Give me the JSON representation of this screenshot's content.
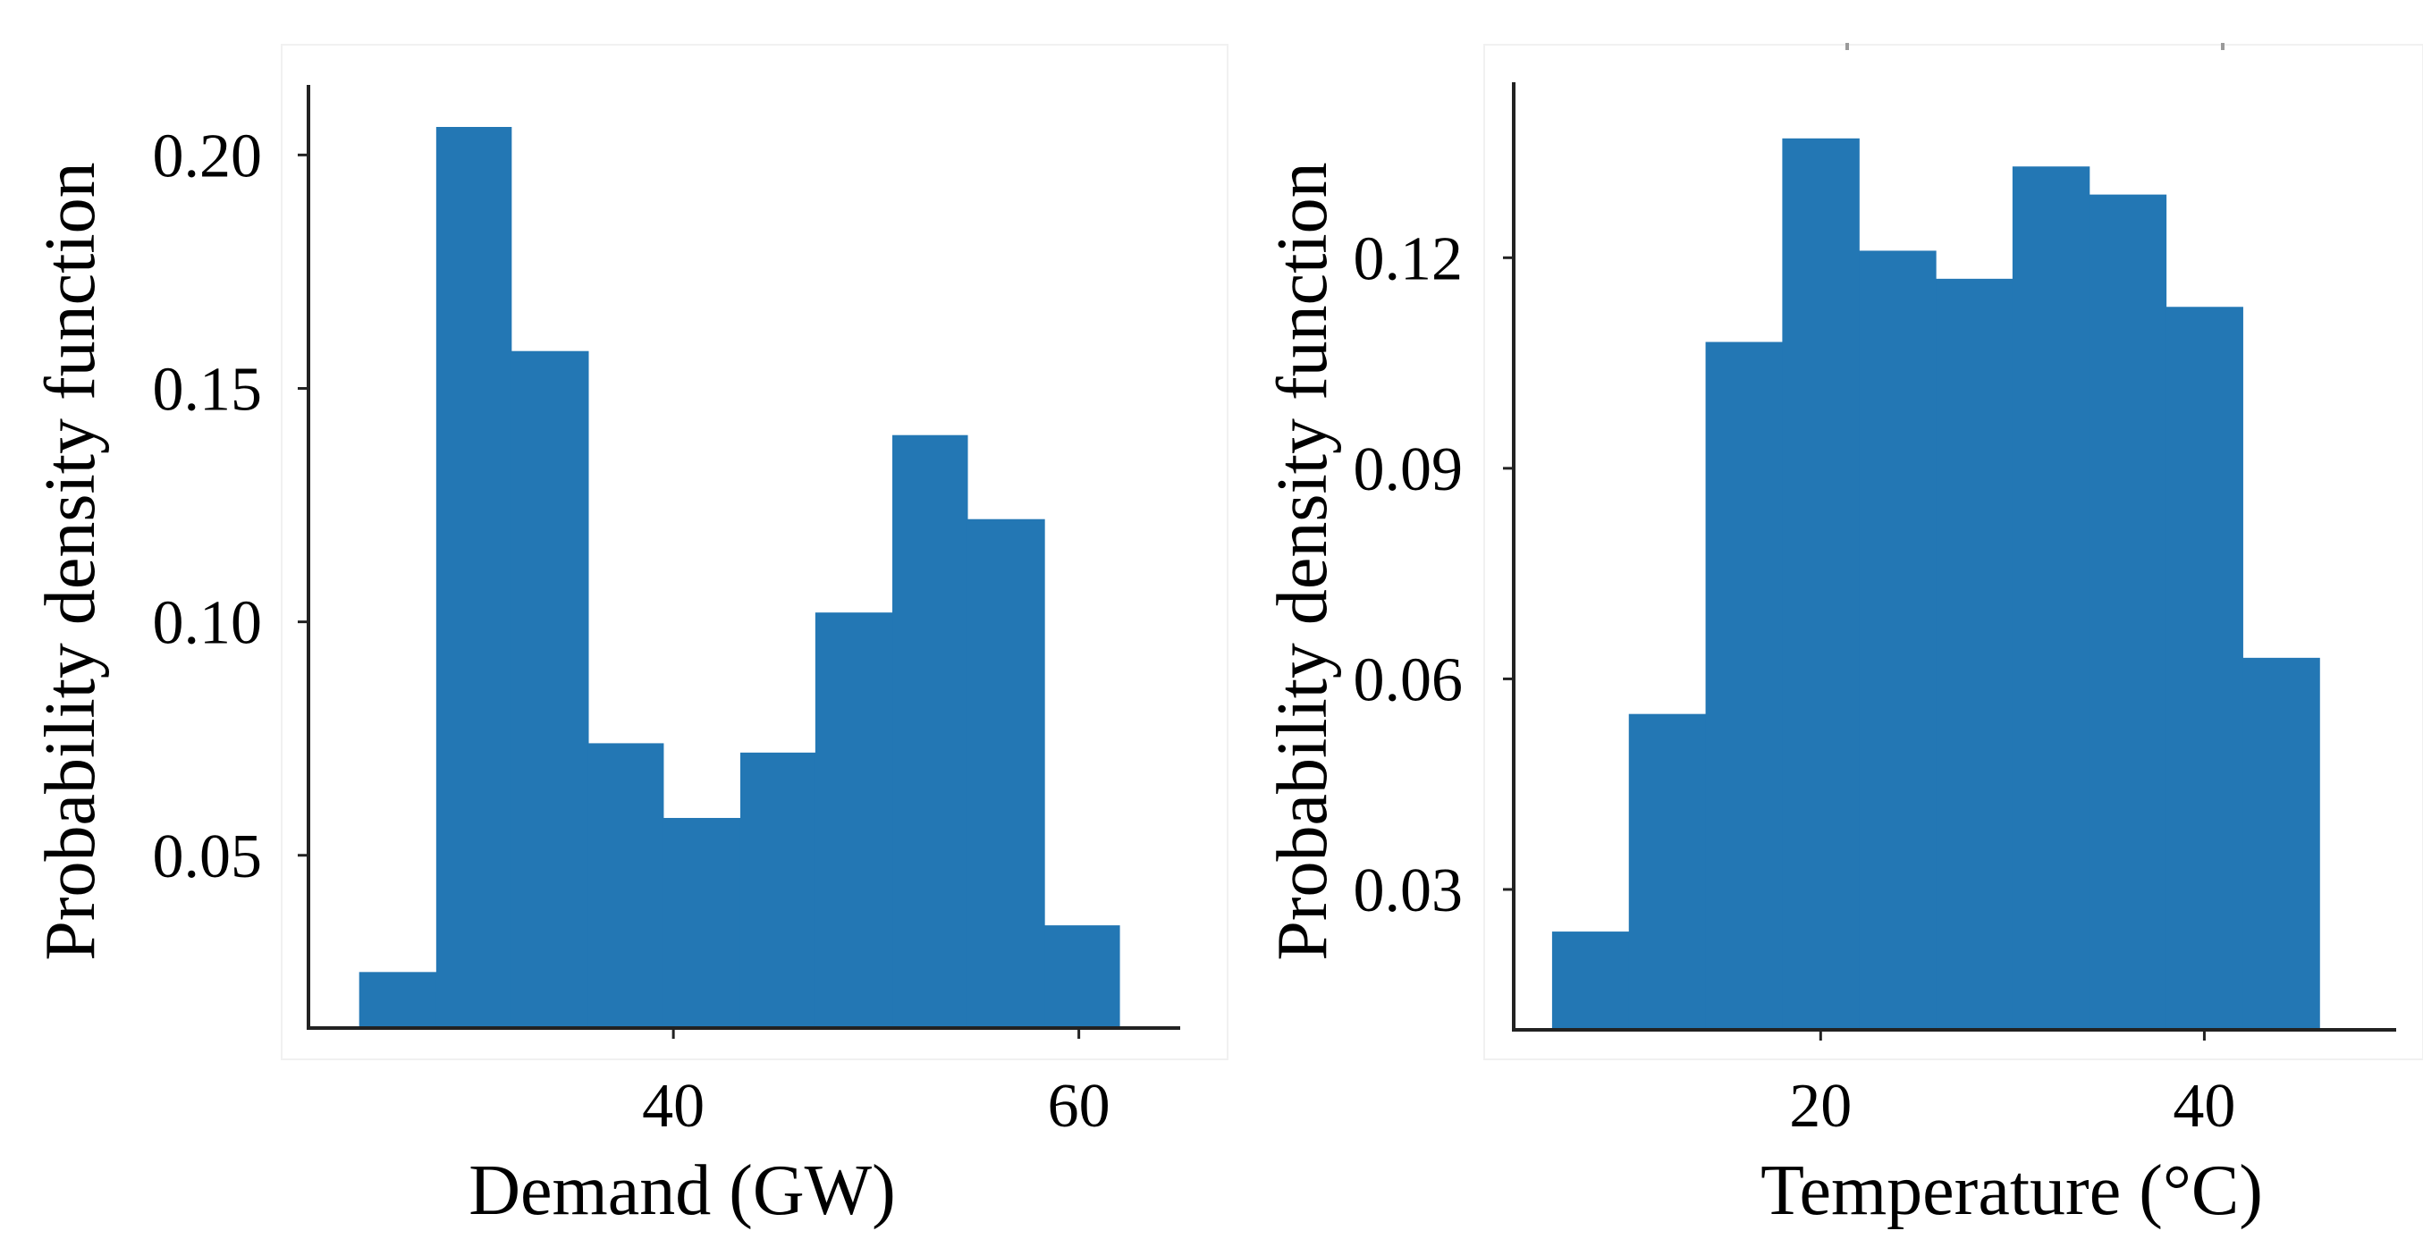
{
  "chart_data": [
    {
      "type": "bar",
      "subtype": "histogram",
      "xlabel": "Demand (GW)",
      "ylabel": "Probability density function",
      "xlim": [
        22,
        65
      ],
      "ylim": [
        0.013,
        0.215
      ],
      "xticks": [
        40,
        60
      ],
      "xtick_labels": [
        "40",
        "60"
      ],
      "yticks": [
        0.05,
        0.1,
        0.15,
        0.2
      ],
      "ytick_labels": [
        "0.05",
        "0.10",
        "0.15",
        "0.20"
      ],
      "bin_edges": [
        24.5,
        28.3,
        32.0,
        35.8,
        39.5,
        43.3,
        47.0,
        50.8,
        54.5,
        58.3,
        62.0
      ],
      "values": [
        0.025,
        0.206,
        0.158,
        0.074,
        0.058,
        0.072,
        0.102,
        0.14,
        0.122,
        0.035
      ],
      "color": "#2377b4",
      "grid": false
    },
    {
      "type": "bar",
      "subtype": "histogram",
      "xlabel": "Temperature (°C)",
      "ylabel": "Probability density function",
      "xlim": [
        4,
        50
      ],
      "ylim": [
        0.01,
        0.145
      ],
      "xticks": [
        20,
        40
      ],
      "xtick_labels": [
        "20",
        "40"
      ],
      "yticks": [
        0.03,
        0.06,
        0.09,
        0.12
      ],
      "ytick_labels": [
        "0.03",
        "0.06",
        "0.09",
        "0.12"
      ],
      "bin_edges": [
        6.0,
        10.0,
        14.0,
        18.0,
        22.0,
        26.0,
        30.0,
        34.0,
        38.0,
        42.0,
        46.0
      ],
      "values": [
        0.024,
        0.055,
        0.108,
        0.137,
        0.121,
        0.117,
        0.133,
        0.129,
        0.113,
        0.063
      ],
      "color": "#2377b4",
      "grid": false
    }
  ]
}
